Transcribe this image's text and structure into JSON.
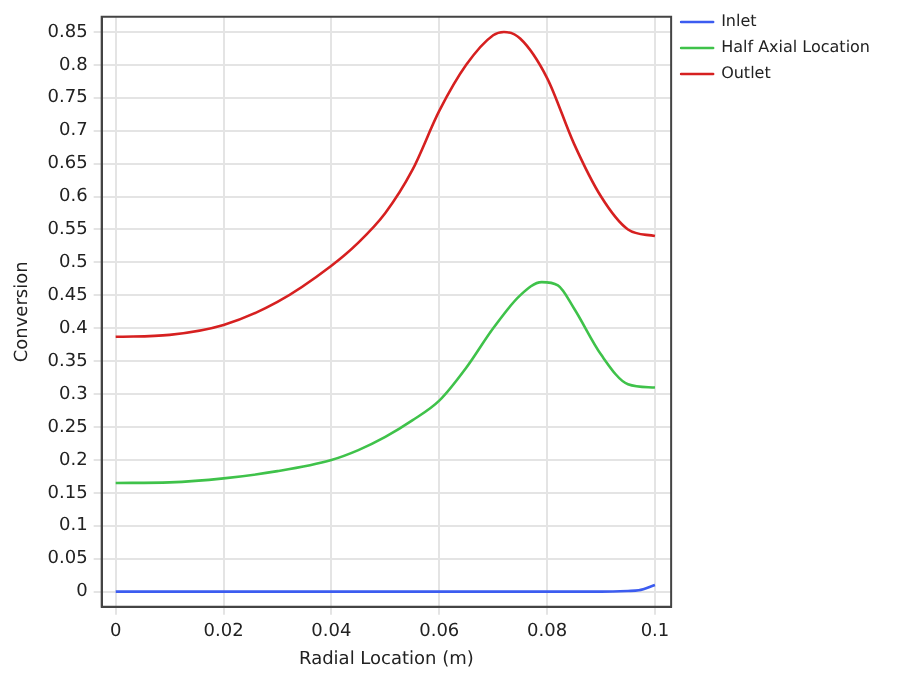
{
  "chart_data": {
    "type": "line",
    "xlabel": "Radial Location (m)",
    "ylabel": "Conversion",
    "xlim": [
      -0.0026,
      0.103
    ],
    "xticks": [
      {
        "value": 0,
        "label": "0"
      },
      0.02,
      0.04,
      0.06,
      0.08,
      0.1
    ],
    "ylim": [
      -0.023,
      0.873
    ],
    "yticks": [
      {
        "value": 0,
        "label": "0"
      },
      0.05,
      0.1,
      0.15,
      0.2,
      0.25,
      0.3,
      0.35,
      0.4,
      0.45,
      0.5,
      0.55,
      0.6,
      0.65,
      0.7,
      0.75,
      0.8,
      0.85
    ],
    "grid": true,
    "legend": "top right",
    "marker": "none",
    "line_style": "solid",
    "series": [
      {
        "name": "Inlet",
        "color": "#3c5cf0",
        "x": [
          0,
          0.02,
          0.04,
          0.06,
          0.08,
          0.09,
          0.095,
          0.097,
          0.1
        ],
        "values": [
          0,
          0,
          0,
          0,
          0,
          0,
          0.001,
          0.002,
          0.01
        ]
      },
      {
        "name": "Half Axial Location",
        "color": "#3fc24a",
        "x": [
          0,
          0.01,
          0.02,
          0.03,
          0.04,
          0.045,
          0.05,
          0.055,
          0.06,
          0.065,
          0.07,
          0.075,
          0.079,
          0.082,
          0.085,
          0.09,
          0.095,
          0.1
        ],
        "values": [
          0.165,
          0.166,
          0.172,
          0.183,
          0.2,
          0.215,
          0.235,
          0.26,
          0.29,
          0.34,
          0.4,
          0.45,
          0.47,
          0.465,
          0.43,
          0.36,
          0.315,
          0.31
        ]
      },
      {
        "name": "Outlet",
        "color": "#d62020",
        "x": [
          0,
          0.01,
          0.02,
          0.03,
          0.04,
          0.045,
          0.05,
          0.055,
          0.06,
          0.065,
          0.07,
          0.072,
          0.075,
          0.08,
          0.085,
          0.09,
          0.095,
          0.1
        ],
        "values": [
          0.387,
          0.39,
          0.405,
          0.44,
          0.495,
          0.53,
          0.575,
          0.64,
          0.73,
          0.8,
          0.845,
          0.85,
          0.84,
          0.78,
          0.68,
          0.6,
          0.55,
          0.54
        ]
      }
    ]
  }
}
